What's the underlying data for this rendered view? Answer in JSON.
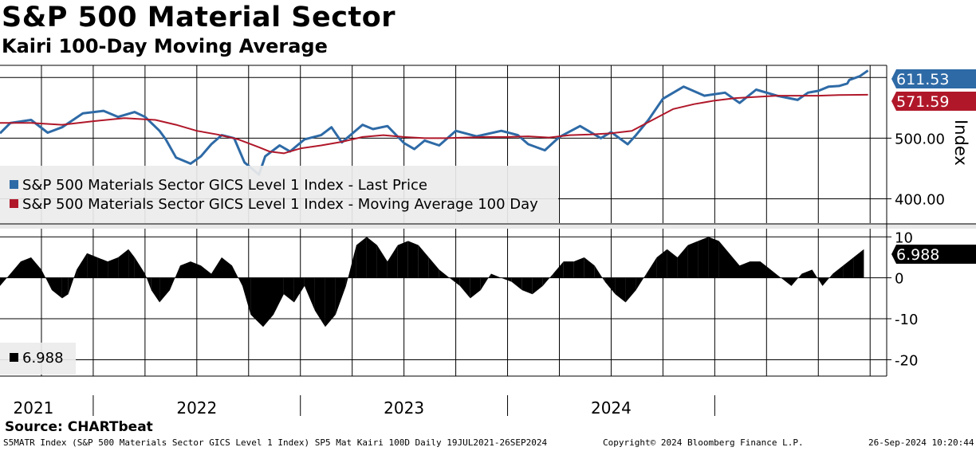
{
  "title": "S&P 500 Material Sector",
  "subtitle": "Kairi 100-Day Moving Average",
  "source": "Source: CHARTbeat",
  "footer": {
    "left": "S5MATR Index (S&P 500 Materials Sector GICS Level 1 Index) SP5 Mat Kairi 100D  Daily 19JUL2021-26SEP2024",
    "center": "Copyright© 2024 Bloomberg Finance L.P.",
    "right": "26-Sep-2024 10:20:44"
  },
  "colors": {
    "price": "#2e6aa6",
    "ma": "#b0182a",
    "kairi": "#000000",
    "grid": "#000000"
  },
  "chart_data": [
    {
      "type": "line",
      "panel": "upper",
      "ylabel": "Index",
      "ylim": [
        360,
        620
      ],
      "yticks": [
        {
          "value": 500,
          "label": "500.00"
        },
        {
          "value": 400,
          "label": "400.00"
        }
      ],
      "last_value_labels": [
        {
          "series": "Last Price",
          "label": "611.53"
        },
        {
          "series": "MA 100",
          "label": "571.59"
        }
      ],
      "x_unit": "years since 2021-01-01",
      "series": [
        {
          "name": "S&P 500 Materials Sector GICS Level 1 Index - Last Price",
          "points": [
            [
              0.55,
              508
            ],
            [
              0.6,
              525
            ],
            [
              0.7,
              530
            ],
            [
              0.78,
              509
            ],
            [
              0.85,
              518
            ],
            [
              0.95,
              541
            ],
            [
              1.05,
              545
            ],
            [
              1.12,
              535
            ],
            [
              1.2,
              543
            ],
            [
              1.25,
              535
            ],
            [
              1.32,
              512
            ],
            [
              1.35,
              498
            ],
            [
              1.4,
              468
            ],
            [
              1.47,
              458
            ],
            [
              1.52,
              470
            ],
            [
              1.57,
              490
            ],
            [
              1.62,
              505
            ],
            [
              1.68,
              500
            ],
            [
              1.73,
              460
            ],
            [
              1.8,
              440
            ],
            [
              1.83,
              470
            ],
            [
              1.9,
              488
            ],
            [
              1.95,
              478
            ],
            [
              2.02,
              498
            ],
            [
              2.1,
              505
            ],
            [
              2.15,
              518
            ],
            [
              2.2,
              493
            ],
            [
              2.3,
              522
            ],
            [
              2.35,
              515
            ],
            [
              2.42,
              520
            ],
            [
              2.5,
              492
            ],
            [
              2.55,
              482
            ],
            [
              2.6,
              496
            ],
            [
              2.67,
              488
            ],
            [
              2.75,
              512
            ],
            [
              2.85,
              503
            ],
            [
              2.97,
              512
            ],
            [
              3.05,
              505
            ],
            [
              3.1,
              490
            ],
            [
              3.18,
              480
            ],
            [
              3.25,
              502
            ],
            [
              3.35,
              520
            ],
            [
              3.45,
              500
            ],
            [
              3.5,
              510
            ],
            [
              3.58,
              490
            ],
            [
              3.62,
              505
            ],
            [
              3.68,
              530
            ],
            [
              3.75,
              565
            ],
            [
              3.85,
              585
            ],
            [
              3.95,
              570
            ],
            [
              4.05,
              575
            ],
            [
              4.12,
              558
            ],
            [
              4.2,
              580
            ],
            [
              4.3,
              570
            ],
            [
              4.4,
              563
            ],
            [
              4.45,
              575
            ],
            [
              4.5,
              578
            ],
            [
              4.55,
              585
            ],
            [
              4.6,
              586
            ],
            [
              4.64,
              590
            ],
            [
              4.65,
              596
            ],
            [
              4.7,
              602
            ],
            [
              4.74,
              611.53
            ]
          ]
        },
        {
          "name": "S&P 500 Materials Sector GICS Level 1 Index - Moving Average 100 Day",
          "points": [
            [
              0.55,
              525
            ],
            [
              0.7,
              525
            ],
            [
              0.85,
              522
            ],
            [
              1.0,
              528
            ],
            [
              1.15,
              533
            ],
            [
              1.3,
              530
            ],
            [
              1.4,
              522
            ],
            [
              1.5,
              512
            ],
            [
              1.6,
              506
            ],
            [
              1.7,
              498
            ],
            [
              1.8,
              485
            ],
            [
              1.85,
              478
            ],
            [
              1.92,
              475
            ],
            [
              2.0,
              483
            ],
            [
              2.1,
              488
            ],
            [
              2.2,
              494
            ],
            [
              2.3,
              502
            ],
            [
              2.4,
              505
            ],
            [
              2.5,
              502
            ],
            [
              2.6,
              500
            ],
            [
              2.7,
              500
            ],
            [
              2.8,
              501
            ],
            [
              2.9,
              502
            ],
            [
              3.0,
              502
            ],
            [
              3.1,
              503
            ],
            [
              3.2,
              501
            ],
            [
              3.3,
              505
            ],
            [
              3.4,
              506
            ],
            [
              3.5,
              508
            ],
            [
              3.6,
              512
            ],
            [
              3.7,
              530
            ],
            [
              3.8,
              548
            ],
            [
              3.9,
              556
            ],
            [
              4.0,
              562
            ],
            [
              4.1,
              566
            ],
            [
              4.2,
              568
            ],
            [
              4.3,
              570
            ],
            [
              4.4,
              570
            ],
            [
              4.5,
              570
            ],
            [
              4.6,
              571
            ],
            [
              4.74,
              571.59
            ]
          ]
        }
      ],
      "x_tick_labels": [
        "2021",
        "2022",
        "2023",
        "2024"
      ]
    },
    {
      "type": "bar",
      "panel": "lower",
      "name": "SP5 Mat Kairi 100D",
      "ylim": [
        -24,
        12
      ],
      "yticks": [
        {
          "value": 10,
          "label": "10"
        },
        {
          "value": 0,
          "label": "0"
        },
        {
          "value": -10,
          "label": "-10"
        },
        {
          "value": -20,
          "label": "-20"
        }
      ],
      "last_value_label": "6.988",
      "legend_label": "6.988",
      "points": [
        [
          0.55,
          -2
        ],
        [
          0.6,
          1
        ],
        [
          0.65,
          4
        ],
        [
          0.7,
          5
        ],
        [
          0.75,
          2
        ],
        [
          0.8,
          -3
        ],
        [
          0.85,
          -5
        ],
        [
          0.88,
          -4
        ],
        [
          0.92,
          2
        ],
        [
          0.97,
          6
        ],
        [
          1.02,
          5
        ],
        [
          1.07,
          4
        ],
        [
          1.12,
          5
        ],
        [
          1.17,
          7
        ],
        [
          1.2,
          5
        ],
        [
          1.25,
          1
        ],
        [
          1.28,
          -3
        ],
        [
          1.32,
          -6
        ],
        [
          1.37,
          -3
        ],
        [
          1.42,
          3
        ],
        [
          1.47,
          4
        ],
        [
          1.52,
          3
        ],
        [
          1.57,
          1
        ],
        [
          1.62,
          5
        ],
        [
          1.67,
          3
        ],
        [
          1.72,
          -2
        ],
        [
          1.76,
          -9
        ],
        [
          1.82,
          -12
        ],
        [
          1.87,
          -9
        ],
        [
          1.92,
          -4
        ],
        [
          1.97,
          -6
        ],
        [
          2.02,
          -2
        ],
        [
          2.07,
          -8
        ],
        [
          2.12,
          -12
        ],
        [
          2.17,
          -9
        ],
        [
          2.22,
          -2
        ],
        [
          2.27,
          8
        ],
        [
          2.32,
          10
        ],
        [
          2.37,
          8
        ],
        [
          2.42,
          4
        ],
        [
          2.47,
          8
        ],
        [
          2.52,
          9
        ],
        [
          2.57,
          8
        ],
        [
          2.62,
          5
        ],
        [
          2.67,
          2
        ],
        [
          2.72,
          0
        ],
        [
          2.77,
          -2
        ],
        [
          2.82,
          -5
        ],
        [
          2.87,
          -3
        ],
        [
          2.92,
          1
        ],
        [
          2.97,
          0
        ],
        [
          3.02,
          -1
        ],
        [
          3.07,
          -3
        ],
        [
          3.12,
          -4
        ],
        [
          3.17,
          -2
        ],
        [
          3.22,
          1
        ],
        [
          3.27,
          4
        ],
        [
          3.32,
          4
        ],
        [
          3.37,
          5
        ],
        [
          3.42,
          3
        ],
        [
          3.47,
          -1
        ],
        [
          3.52,
          -4
        ],
        [
          3.57,
          -6
        ],
        [
          3.62,
          -3
        ],
        [
          3.67,
          1
        ],
        [
          3.72,
          5
        ],
        [
          3.77,
          7
        ],
        [
          3.82,
          5
        ],
        [
          3.87,
          8
        ],
        [
          3.92,
          9
        ],
        [
          3.97,
          10
        ],
        [
          4.02,
          9
        ],
        [
          4.07,
          6
        ],
        [
          4.12,
          3
        ],
        [
          4.17,
          4
        ],
        [
          4.22,
          4
        ],
        [
          4.27,
          2
        ],
        [
          4.32,
          0
        ],
        [
          4.37,
          -2
        ],
        [
          4.42,
          1
        ],
        [
          4.47,
          2
        ],
        [
          4.52,
          -2
        ],
        [
          4.57,
          1
        ],
        [
          4.62,
          3
        ],
        [
          4.67,
          5
        ],
        [
          4.72,
          6.988
        ]
      ]
    }
  ],
  "legend": {
    "price": "S&P 500 Materials Sector GICS Level 1 Index - Last Price",
    "ma": "S&P 500 Materials Sector GICS Level 1 Index - Moving Average 100 Day"
  },
  "x_axis": {
    "years": [
      "2021",
      "2022",
      "2023",
      "2024"
    ]
  }
}
